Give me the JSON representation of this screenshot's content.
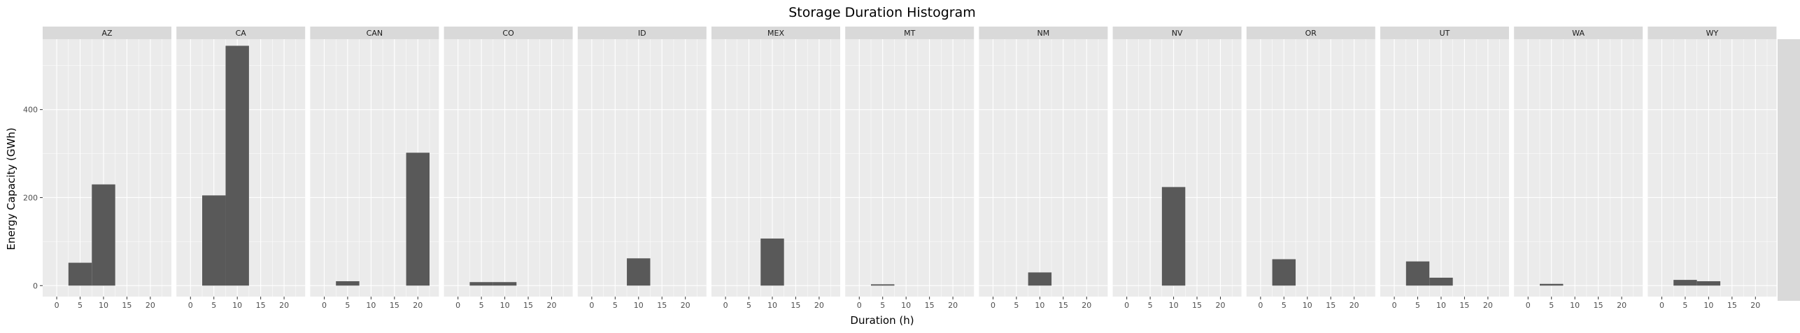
{
  "chart_data": {
    "type": "bar",
    "title": "Storage Duration Histogram",
    "xlabel": "Duration (h)",
    "ylabel": "Energy Capacity (GWh)",
    "xlim": [
      -3,
      24.5
    ],
    "ylim": [
      -25,
      560
    ],
    "x_ticks": [
      0,
      5,
      10,
      15,
      20
    ],
    "x_tick_labels": [
      "0",
      "5",
      "10",
      "15",
      "20"
    ],
    "y_ticks": [
      0,
      200,
      400
    ],
    "y_tick_labels": [
      "0",
      "200",
      "400"
    ],
    "bin_width": 5,
    "grid": true,
    "legend": "none",
    "facets": [
      {
        "name": "AZ",
        "bins": [
          {
            "x_start": 2.5,
            "x_end": 7.5,
            "value": 52
          },
          {
            "x_start": 7.5,
            "x_end": 12.5,
            "value": 230
          }
        ]
      },
      {
        "name": "CA",
        "bins": [
          {
            "x_start": 2.5,
            "x_end": 7.5,
            "value": 205
          },
          {
            "x_start": 7.5,
            "x_end": 12.5,
            "value": 545
          }
        ]
      },
      {
        "name": "CAN",
        "bins": [
          {
            "x_start": 2.5,
            "x_end": 7.5,
            "value": 10
          },
          {
            "x_start": 17.5,
            "x_end": 22.5,
            "value": 302
          }
        ]
      },
      {
        "name": "CO",
        "bins": [
          {
            "x_start": 2.5,
            "x_end": 7.5,
            "value": 8
          },
          {
            "x_start": 7.5,
            "x_end": 12.5,
            "value": 8
          }
        ]
      },
      {
        "name": "ID",
        "bins": [
          {
            "x_start": 7.5,
            "x_end": 12.5,
            "value": 62
          }
        ]
      },
      {
        "name": "MEX",
        "bins": [
          {
            "x_start": 7.5,
            "x_end": 12.5,
            "value": 107
          }
        ]
      },
      {
        "name": "MT",
        "bins": [
          {
            "x_start": 2.5,
            "x_end": 7.5,
            "value": 3
          }
        ]
      },
      {
        "name": "NM",
        "bins": [
          {
            "x_start": 7.5,
            "x_end": 12.5,
            "value": 30
          }
        ]
      },
      {
        "name": "NV",
        "bins": [
          {
            "x_start": 7.5,
            "x_end": 12.5,
            "value": 224
          }
        ]
      },
      {
        "name": "OR",
        "bins": [
          {
            "x_start": 2.5,
            "x_end": 7.5,
            "value": 60
          }
        ]
      },
      {
        "name": "UT",
        "bins": [
          {
            "x_start": 2.5,
            "x_end": 7.5,
            "value": 55
          },
          {
            "x_start": 7.5,
            "x_end": 12.5,
            "value": 18
          }
        ]
      },
      {
        "name": "WA",
        "bins": [
          {
            "x_start": 2.5,
            "x_end": 7.5,
            "value": 4
          }
        ]
      },
      {
        "name": "WY",
        "bins": [
          {
            "x_start": 2.5,
            "x_end": 7.5,
            "value": 13
          },
          {
            "x_start": 7.5,
            "x_end": 12.5,
            "value": 10
          }
        ]
      }
    ],
    "colors": {
      "bar_fill": "#595959",
      "panel_background": "#ebebeb",
      "strip_background": "#d9d9d9",
      "grid_major": "#ffffff",
      "tick_text": "#4d4d4d"
    }
  }
}
